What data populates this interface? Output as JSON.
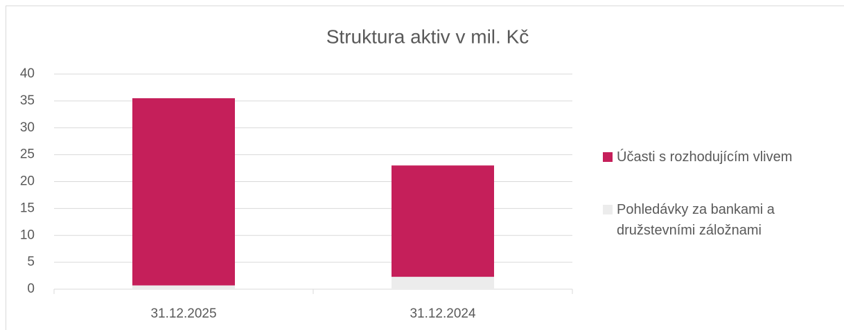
{
  "chart_data": {
    "type": "stacked_bar",
    "title": "Struktura aktiv v mil. Kč",
    "categories": [
      "31.12.2025",
      "31.12.2024"
    ],
    "series": [
      {
        "name": "Pohledávky za bankami a družstevními záložnami",
        "color": "#ececec",
        "values": [
          0.7,
          2.3
        ]
      },
      {
        "name": "Účasti s rozhodujícím vlivem",
        "color": "#c51f5a",
        "values": [
          34.8,
          20.7
        ]
      }
    ],
    "ylim": [
      0,
      40
    ],
    "yticks": [
      0,
      5,
      10,
      15,
      20,
      25,
      30,
      35,
      40
    ],
    "grid": true,
    "legend": "right"
  }
}
